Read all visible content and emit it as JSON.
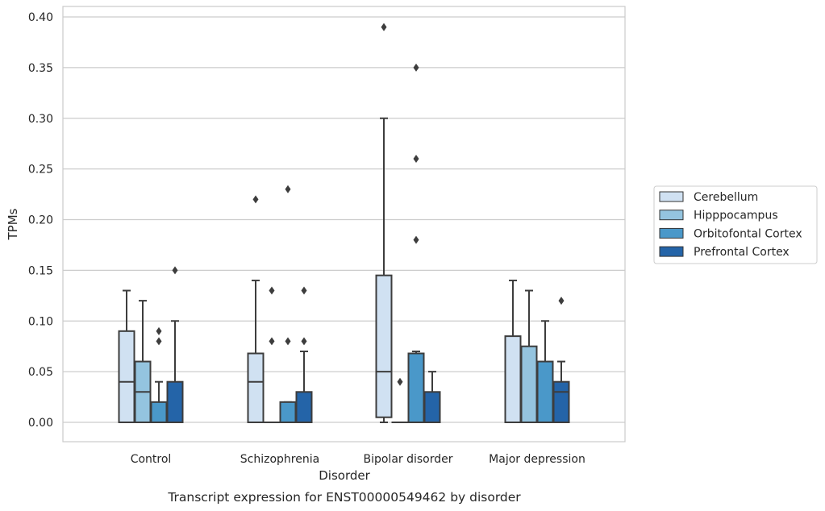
{
  "caption": "Transcript expression for ENST00000549462 by disorder",
  "chart_data": {
    "type": "box",
    "xlabel": "Disorder",
    "ylabel": "TPMs",
    "ylim": [
      -0.019,
      0.41
    ],
    "yticks": [
      "0.00",
      "0.05",
      "0.10",
      "0.15",
      "0.20",
      "0.25",
      "0.30",
      "0.35",
      "0.40"
    ],
    "grid": true,
    "legend_position": "right",
    "categories": [
      "Control",
      "Schizophrenia",
      "Bipolar disorder",
      "Major depression"
    ],
    "series": [
      {
        "name": "Cerebellum",
        "color": "#d0e1f2",
        "boxes": [
          {
            "q1": 0.0,
            "median": 0.04,
            "q3": 0.09,
            "whisker_low": 0.0,
            "whisker_high": 0.13,
            "outliers": []
          },
          {
            "q1": 0.0,
            "median": 0.04,
            "q3": 0.068,
            "whisker_low": 0.0,
            "whisker_high": 0.14,
            "outliers": [
              0.22
            ]
          },
          {
            "q1": 0.005,
            "median": 0.05,
            "q3": 0.145,
            "whisker_low": 0.0,
            "whisker_high": 0.3,
            "outliers": [
              0.39
            ]
          },
          {
            "q1": 0.0,
            "median": 0.0,
            "q3": 0.085,
            "whisker_low": 0.0,
            "whisker_high": 0.14,
            "outliers": []
          }
        ]
      },
      {
        "name": "Hipppocampus",
        "color": "#94c4df",
        "boxes": [
          {
            "q1": 0.0,
            "median": 0.03,
            "q3": 0.06,
            "whisker_low": 0.0,
            "whisker_high": 0.12,
            "outliers": []
          },
          {
            "q1": 0.0,
            "median": 0.0,
            "q3": 0.0,
            "whisker_low": 0.0,
            "whisker_high": 0.0,
            "outliers": [
              0.08,
              0.13
            ]
          },
          {
            "q1": 0.0,
            "median": 0.0,
            "q3": 0.0,
            "whisker_low": 0.0,
            "whisker_high": 0.0,
            "outliers": [
              0.04
            ]
          },
          {
            "q1": 0.0,
            "median": 0.0,
            "q3": 0.075,
            "whisker_low": 0.0,
            "whisker_high": 0.13,
            "outliers": []
          }
        ]
      },
      {
        "name": "Orbitofontal Cortex",
        "color": "#4a98c9",
        "boxes": [
          {
            "q1": 0.0,
            "median": 0.0,
            "q3": 0.02,
            "whisker_low": 0.0,
            "whisker_high": 0.04,
            "outliers": [
              0.08,
              0.09
            ]
          },
          {
            "q1": 0.0,
            "median": 0.0,
            "q3": 0.02,
            "whisker_low": 0.0,
            "whisker_high": 0.02,
            "outliers": [
              0.08,
              0.23
            ]
          },
          {
            "q1": 0.0,
            "median": 0.0,
            "q3": 0.068,
            "whisker_low": 0.0,
            "whisker_high": 0.07,
            "outliers": [
              0.18,
              0.26,
              0.35
            ]
          },
          {
            "q1": 0.0,
            "median": 0.0,
            "q3": 0.06,
            "whisker_low": 0.0,
            "whisker_high": 0.1,
            "outliers": []
          }
        ]
      },
      {
        "name": "Prefrontal Cortex",
        "color": "#2464a8",
        "boxes": [
          {
            "q1": 0.0,
            "median": 0.0,
            "q3": 0.04,
            "whisker_low": 0.0,
            "whisker_high": 0.1,
            "outliers": [
              0.15
            ]
          },
          {
            "q1": 0.0,
            "median": 0.0,
            "q3": 0.03,
            "whisker_low": 0.0,
            "whisker_high": 0.07,
            "outliers": [
              0.08,
              0.13
            ]
          },
          {
            "q1": 0.0,
            "median": 0.0,
            "q3": 0.03,
            "whisker_low": 0.0,
            "whisker_high": 0.05,
            "outliers": []
          },
          {
            "q1": 0.0,
            "median": 0.03,
            "q3": 0.04,
            "whisker_low": 0.0,
            "whisker_high": 0.06,
            "outliers": [
              0.12
            ]
          }
        ]
      }
    ]
  }
}
